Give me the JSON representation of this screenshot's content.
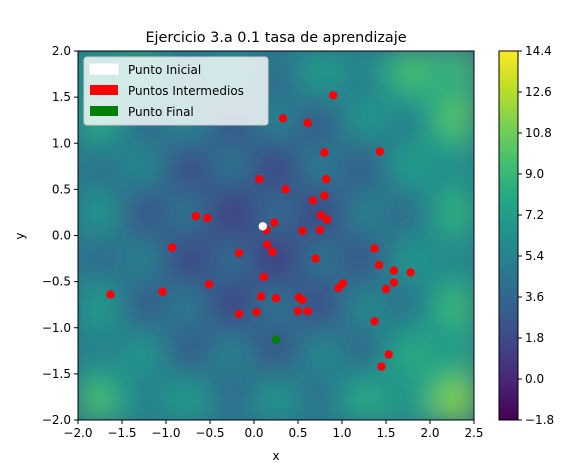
{
  "chart_data": {
    "type": "scatter",
    "title": "Ejercicio 3.a 0.1 tasa de aprendizaje",
    "xlabel": "x",
    "ylabel": "y",
    "xlim": [
      -2.0,
      2.5
    ],
    "ylim": [
      -2.0,
      2.0
    ],
    "x_ticks": [
      "−2.0",
      "−1.5",
      "−1.0",
      "−0.5",
      "0.0",
      "0.5",
      "1.0",
      "1.5",
      "2.0",
      "2.5"
    ],
    "y_ticks": [
      "−2.0",
      "−1.5",
      "−1.0",
      "−0.5",
      "0.0",
      "0.5",
      "1.0",
      "1.5",
      "2.0"
    ],
    "colorbar": {
      "range": [
        -1.8,
        14.4
      ],
      "ticks": [
        "−1.8",
        "0.0",
        "1.8",
        "3.6",
        "5.4",
        "7.2",
        "9.0",
        "10.8",
        "12.6",
        "14.4"
      ],
      "colormap": "viridis"
    },
    "background": "contour map of the objective function",
    "grid": false,
    "legend_position": "upper-left",
    "legend": [
      {
        "label": "Punto Inicial",
        "color": "#ffffff"
      },
      {
        "label": "Puntos Intermedios",
        "color": "#ff0000"
      },
      {
        "label": "Punto Final",
        "color": "#008000"
      }
    ],
    "series": [
      {
        "name": "Punto Inicial",
        "color": "#ffffff",
        "points": [
          [
            0.1,
            0.1
          ]
        ]
      },
      {
        "name": "Puntos Intermedios",
        "color": "#ff0000",
        "points": [
          [
            0.9,
            1.52
          ],
          [
            0.33,
            1.27
          ],
          [
            0.61,
            1.22
          ],
          [
            0.8,
            0.9
          ],
          [
            1.43,
            0.91
          ],
          [
            0.06,
            0.61
          ],
          [
            0.82,
            0.61
          ],
          [
            0.36,
            0.5
          ],
          [
            0.8,
            0.43
          ],
          [
            0.67,
            0.38
          ],
          [
            -0.66,
            0.21
          ],
          [
            -0.53,
            0.19
          ],
          [
            0.76,
            0.22
          ],
          [
            0.83,
            0.17
          ],
          [
            0.23,
            0.14
          ],
          [
            0.14,
            0.06
          ],
          [
            0.55,
            0.05
          ],
          [
            0.75,
            0.06
          ],
          [
            -0.93,
            -0.13
          ],
          [
            0.15,
            -0.1
          ],
          [
            -0.17,
            -0.19
          ],
          [
            0.21,
            -0.18
          ],
          [
            1.37,
            -0.14
          ],
          [
            0.7,
            -0.25
          ],
          [
            1.42,
            -0.32
          ],
          [
            1.59,
            -0.38
          ],
          [
            1.78,
            -0.4
          ],
          [
            0.11,
            -0.45
          ],
          [
            1.59,
            -0.51
          ],
          [
            1.01,
            -0.52
          ],
          [
            -0.51,
            -0.53
          ],
          [
            0.96,
            -0.57
          ],
          [
            1.5,
            -0.58
          ],
          [
            -1.04,
            -0.61
          ],
          [
            -1.63,
            -0.64
          ],
          [
            0.08,
            -0.66
          ],
          [
            0.25,
            -0.68
          ],
          [
            0.51,
            -0.67
          ],
          [
            0.55,
            -0.7
          ],
          [
            0.03,
            -0.83
          ],
          [
            0.5,
            -0.82
          ],
          [
            0.61,
            -0.82
          ],
          [
            -0.17,
            -0.85
          ],
          [
            1.37,
            -0.93
          ],
          [
            1.53,
            -1.29
          ],
          [
            1.45,
            -1.42
          ]
        ]
      },
      {
        "name": "Punto Final",
        "color": "#008000",
        "points": [
          [
            0.25,
            -1.13
          ]
        ]
      }
    ]
  }
}
